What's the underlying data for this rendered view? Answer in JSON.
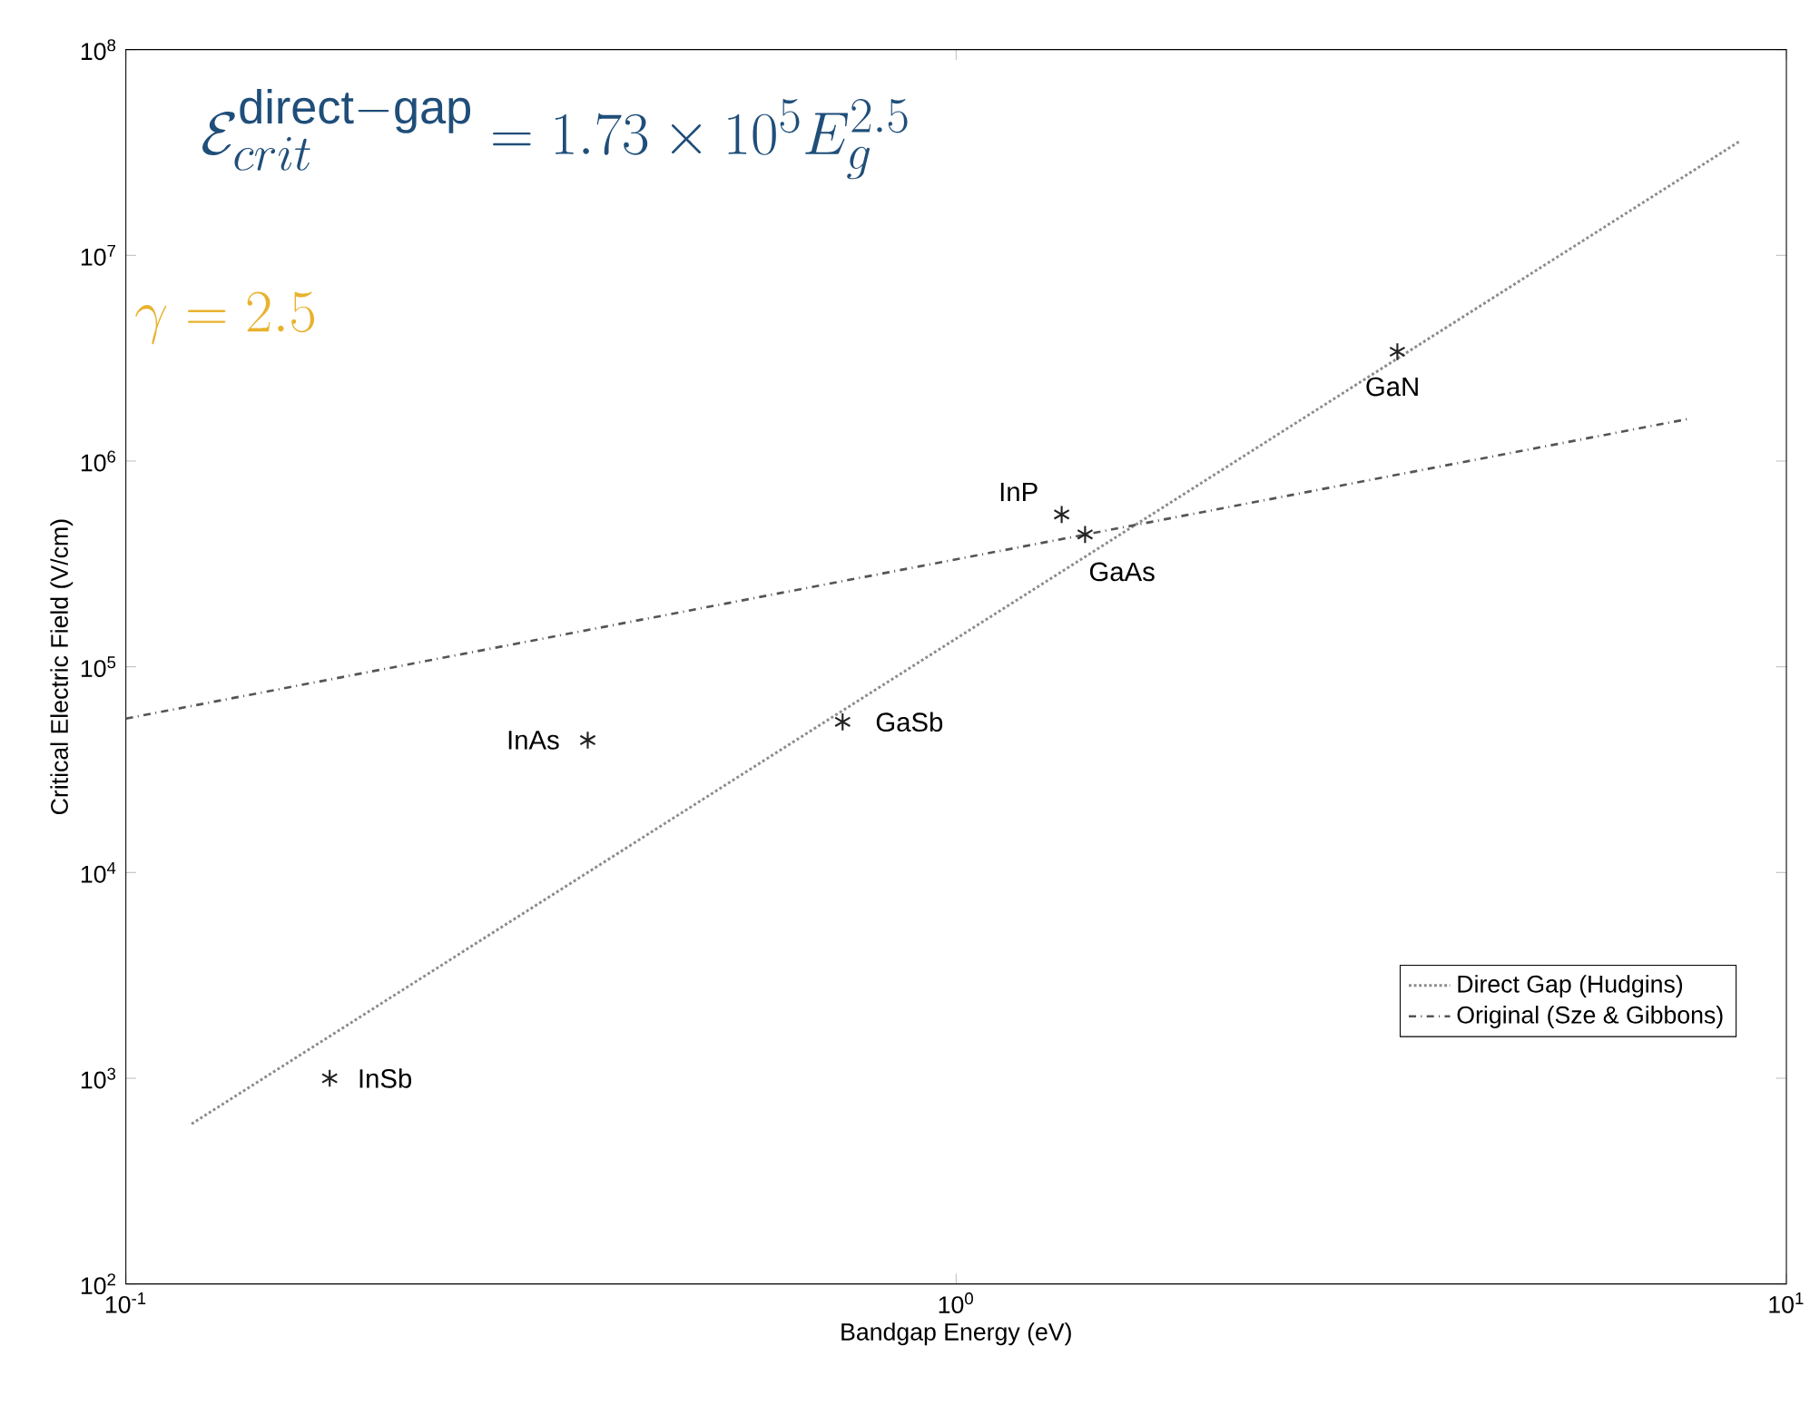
{
  "chart_data": {
    "type": "line",
    "xlabel": "Bandgap Energy (eV)",
    "ylabel": "Critical Electric Field (V/cm)",
    "log": "xy",
    "xlim": [
      0.1,
      10
    ],
    "ylim": [
      100,
      100000000
    ],
    "xticks": [
      {
        "value": 0.1,
        "label": "10$^{-1}$"
      },
      {
        "value": 1,
        "label": "10$^{0}$"
      },
      {
        "value": 10,
        "label": "10$^{1}$"
      }
    ],
    "yticks": [
      {
        "value": 100,
        "label": "10$^{2}$"
      },
      {
        "value": 1000,
        "label": "10$^{3}$"
      },
      {
        "value": 10000,
        "label": "10$^{4}$"
      },
      {
        "value": 100000,
        "label": "10$^{5}$"
      },
      {
        "value": 1000000,
        "label": "10$^{6}$"
      },
      {
        "value": 10000000,
        "label": "10$^{7}$"
      },
      {
        "value": 100000000,
        "label": "10$^{8}$"
      }
    ],
    "legend": "bottom right",
    "grid": false,
    "series": [
      {
        "name": "Direct Gap (Hudgins)",
        "color": "#8c8c8c",
        "line_style": "dotted",
        "x": [
          0.12,
          8.8
        ],
        "values": [
          600,
          36000000
        ]
      },
      {
        "name": "Original (Sze & Gibbons)",
        "color": "#555555",
        "line_style": "dashed",
        "x": [
          0.1,
          7.6
        ],
        "values": [
          56000,
          1600000
        ]
      },
      {
        "type": "scatter",
        "color": "#222222",
        "marker": "cross",
        "x": [
          0.176,
          0.36,
          0.73,
          1.34,
          1.43,
          3.4
        ],
        "values": [
          1000,
          44000,
          54000,
          550000,
          440000,
          3400000
        ]
      }
    ],
    "annotations": [
      {
        "text": "InSb",
        "x": 0.176,
        "y": 1000
      },
      {
        "text": "InAs",
        "x": 0.36,
        "y": 44000
      },
      {
        "text": "GaSb",
        "x": 0.73,
        "y": 54000
      },
      {
        "text": "InP",
        "x": 1.34,
        "y": 550000
      },
      {
        "text": "GaAs",
        "x": 1.43,
        "y": 440000
      },
      {
        "text": "GaN",
        "x": 3.4,
        "y": 3400000
      },
      "\\mathcal{E}_{crit}^{\\mathrm{direct-gap}} = 1.73 \\times 10^{5} E_{g}^{2.5}",
      "\\gamma = 2.5"
    ]
  }
}
